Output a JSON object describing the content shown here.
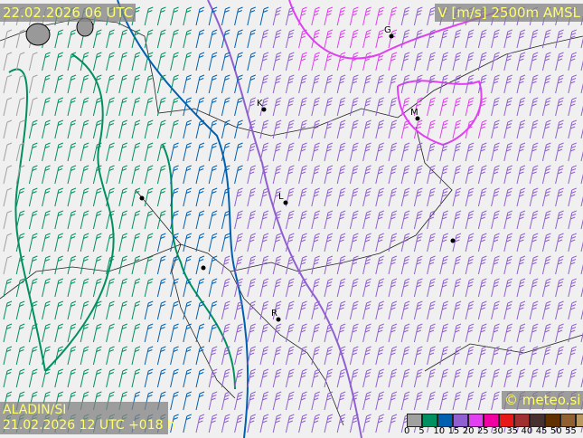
{
  "header": {
    "valid_time": "22.02.2026 06 UTC",
    "parameter": "V [m/s] 2500m AMSL"
  },
  "footer": {
    "model": "ALADIN/SI",
    "run": "21.02.2026 12 UTC +018 h",
    "copyright": "© meteo.si"
  },
  "legend": {
    "ticks": [
      "0",
      "5",
      "10",
      "15",
      "20",
      "25",
      "30",
      "35",
      "40",
      "45",
      "50",
      "55"
    ],
    "colors": [
      "#a0a0a0",
      "#009060",
      "#0060b0",
      "#9060d0",
      "#e040f0",
      "#f000a0",
      "#e81818",
      "#a03030",
      "#483030",
      "#603000",
      "#906030",
      "#b89860"
    ]
  },
  "cities": [
    {
      "label": "G"
    },
    {
      "label": "K"
    },
    {
      "label": "M"
    },
    {
      "label": "L"
    },
    {
      "label": "R"
    }
  ]
}
